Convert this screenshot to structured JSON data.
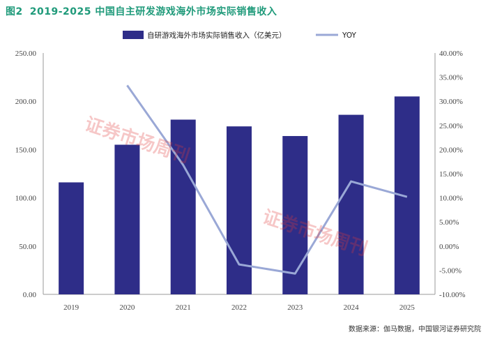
{
  "figure": {
    "number": "图2",
    "title": "2019-2025 中国自主研发游戏海外市场实际销售收入",
    "source": "数据来源：伽马数据，中国银河证券研究院"
  },
  "watermark": "证券市场周刊",
  "colors": {
    "bar": "#2e2d88",
    "line": "#9aa8d6",
    "title": "#1f9a7a"
  },
  "chart_data": {
    "type": "bar",
    "categories": [
      "2019",
      "2020",
      "2021",
      "2022",
      "2023",
      "2024",
      "2025"
    ],
    "series": [
      {
        "name": "自研游戏海外市场实际销售收入（亿美元）",
        "kind": "bar",
        "axis": "left",
        "values": [
          116,
          155,
          181,
          174,
          164,
          186,
          205
        ]
      },
      {
        "name": "YOY",
        "kind": "line",
        "axis": "right",
        "values": [
          null,
          33.3,
          16.8,
          -3.8,
          -5.7,
          13.4,
          10.2
        ]
      }
    ],
    "ylim_left": [
      0,
      250
    ],
    "yticks_left": [
      "0.00",
      "50.00",
      "100.00",
      "150.00",
      "200.00",
      "250.00"
    ],
    "ylim_right": [
      -10,
      40
    ],
    "yticks_right": [
      "-10.00%",
      "-5.00%",
      "0.00%",
      "5.00%",
      "10.00%",
      "15.00%",
      "20.00%",
      "25.00%",
      "30.00%",
      "35.00%",
      "40.00%"
    ],
    "grid": false,
    "legend": "top"
  }
}
